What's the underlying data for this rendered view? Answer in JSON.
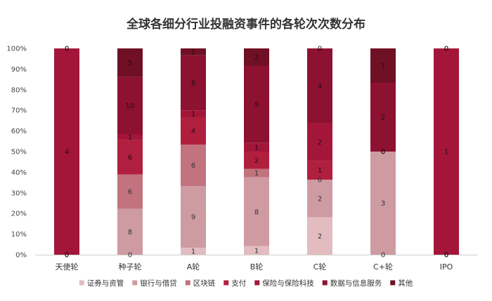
{
  "chart_data": {
    "type": "bar",
    "stacked": "percent",
    "title": "全球各细分行业投融资事件的各轮次次数分布",
    "xlabel": "",
    "ylabel": "",
    "ylim": [
      0,
      100
    ],
    "y_ticks": [
      "0%",
      "10%",
      "20%",
      "30%",
      "40%",
      "50%",
      "60%",
      "70%",
      "80%",
      "90%",
      "100%"
    ],
    "grid": false,
    "legend_position": "bottom",
    "categories": [
      "天使轮",
      "种子轮",
      "A轮",
      "B轮",
      "C轮",
      "C+轮",
      "IPO"
    ],
    "series": [
      {
        "name": "证券与资管",
        "color": "#e2bcc1",
        "values": [
          0,
          0,
          1,
          1,
          2,
          0,
          0
        ],
        "labels": [
          "0",
          "0",
          "1",
          "1",
          "2",
          "0",
          "0"
        ]
      },
      {
        "name": "银行与借贷",
        "color": "#cf9ba3",
        "values": [
          0,
          8,
          9,
          8,
          2,
          3,
          0
        ],
        "labels": [
          "0",
          "8",
          "9",
          "8",
          "2",
          "3",
          "0"
        ]
      },
      {
        "name": "区块链",
        "color": "#c2737e",
        "values": [
          0,
          6,
          6,
          1,
          0,
          0,
          0
        ],
        "labels": [
          "0",
          "6",
          "6",
          "1",
          "0",
          "0",
          "0"
        ]
      },
      {
        "name": "支付",
        "color": "#b11f3f",
        "values": [
          0,
          6,
          4,
          2,
          1,
          0,
          0
        ],
        "labels": [
          "0",
          "6",
          "4",
          "2",
          "1",
          "0",
          "0"
        ]
      },
      {
        "name": "保险与保险科技",
        "color": "#a3163a",
        "values": [
          4,
          1,
          1,
          1,
          2,
          0,
          1
        ],
        "labels": [
          "4",
          "1",
          "1",
          "1",
          "2",
          "0",
          "1"
        ]
      },
      {
        "name": "数据与信息服务",
        "color": "#8d1131",
        "values": [
          0,
          10,
          8,
          9,
          4,
          2,
          0
        ],
        "labels": [
          "0",
          "10",
          "8",
          "9",
          "4",
          "2",
          "0"
        ]
      },
      {
        "name": "其他",
        "color": "#701024",
        "values": [
          0,
          5,
          1,
          2,
          0,
          1,
          0
        ],
        "labels": [
          "0",
          "5",
          "1",
          "2",
          "0",
          "1",
          "0"
        ]
      }
    ]
  }
}
